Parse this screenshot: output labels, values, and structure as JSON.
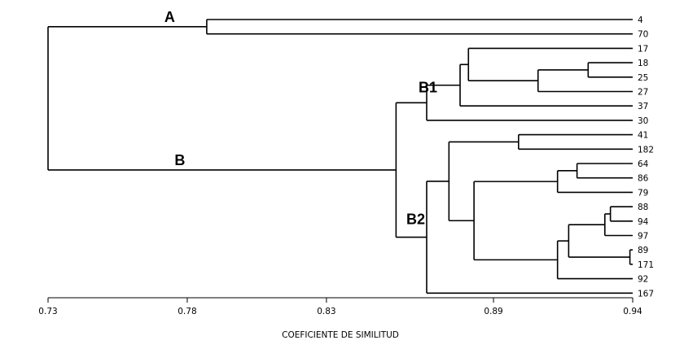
{
  "chart_data": {
    "type": "dendrogram",
    "xlabel": "COEFICIENTE DE SIMILITUD",
    "xlim": [
      0.73,
      0.94
    ],
    "ticks": [
      "0.73",
      "0.78",
      "0.83",
      "0.89",
      "0.94"
    ],
    "tick_values": [
      0.73,
      0.78,
      0.83,
      0.89,
      0.94
    ],
    "leaves": [
      "4",
      "70",
      "17",
      "18",
      "25",
      "27",
      "37",
      "30",
      "41",
      "182",
      "64",
      "86",
      "79",
      "88",
      "94",
      "97",
      "89",
      "171",
      "92",
      "167"
    ],
    "tree": {
      "h": 0.73,
      "label": "",
      "children": [
        {
          "h": 0.787,
          "label": "A",
          "children": [
            "4",
            "70"
          ]
        },
        {
          "h": 0.855,
          "label": "B",
          "children": [
            {
              "h": 0.866,
              "label": "B1",
              "children": [
                {
                  "h": 0.878,
                  "label": "",
                  "children": [
                    {
                      "h": 0.881,
                      "label": "",
                      "children": [
                        "17",
                        {
                          "h": 0.906,
                          "label": "",
                          "children": [
                            {
                              "h": 0.924,
                              "label": "",
                              "children": [
                                "18",
                                "25"
                              ]
                            },
                            "27"
                          ]
                        }
                      ]
                    },
                    "37"
                  ]
                },
                "30"
              ]
            },
            {
              "h": 0.866,
              "label": "B2",
              "children": [
                {
                  "h": 0.874,
                  "label": "",
                  "children": [
                    {
                      "h": 0.899,
                      "label": "",
                      "children": [
                        "41",
                        "182"
                      ]
                    },
                    {
                      "h": 0.883,
                      "label": "",
                      "children": [
                        {
                          "h": 0.913,
                          "label": "",
                          "children": [
                            {
                              "h": 0.92,
                              "label": "",
                              "children": [
                                "64",
                                "86"
                              ]
                            },
                            "79"
                          ]
                        },
                        {
                          "h": 0.913,
                          "label": "",
                          "children": [
                            {
                              "h": 0.917,
                              "label": "",
                              "children": [
                                {
                                  "h": 0.93,
                                  "label": "",
                                  "children": [
                                    {
                                      "h": 0.932,
                                      "label": "",
                                      "children": [
                                        "88",
                                        "94"
                                      ]
                                    },
                                    "97"
                                  ]
                                },
                                {
                                  "h": 0.939,
                                  "label": "",
                                  "children": [
                                    "89",
                                    "171"
                                  ]
                                }
                              ]
                            },
                            "92"
                          ]
                        }
                      ]
                    }
                  ]
                },
                "167"
              ]
            }
          ]
        }
      ]
    }
  }
}
